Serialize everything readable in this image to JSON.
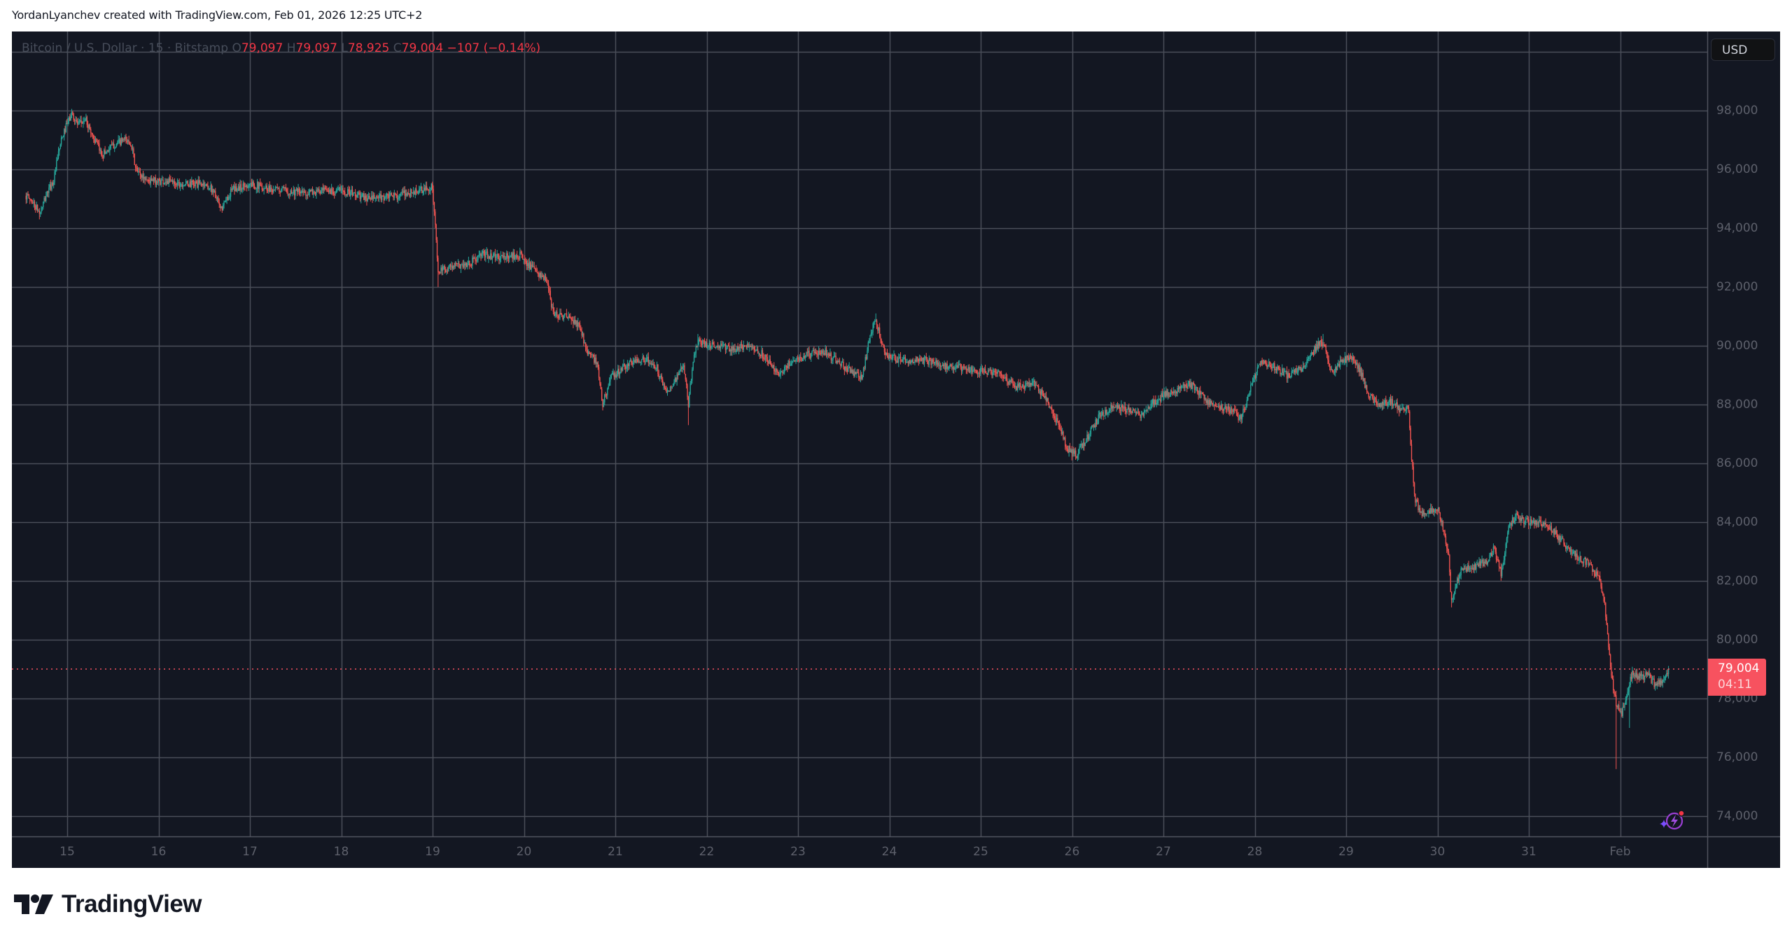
{
  "header": {
    "attribution": "YordanLyanchev created with TradingView.com, Feb 01, 2026 12:25 UTC+2"
  },
  "legend": {
    "symbol": "Bitcoin / U.S. Dollar · 15 · Bitstamp",
    "open_label": "O",
    "open": "79,097",
    "high_label": "H",
    "high": "79,097",
    "low_label": "L",
    "low": "78,925",
    "close_label": "C",
    "close": "79,004",
    "change": "−107 (−0.14%)"
  },
  "price_axis": {
    "currency_button": "USD",
    "ticks": [
      "98,000",
      "96,000",
      "94,000",
      "92,000",
      "90,000",
      "88,000",
      "86,000",
      "84,000",
      "82,000",
      "80,000",
      "78,000",
      "76,000",
      "74,000"
    ]
  },
  "time_axis": {
    "ticks": [
      "15",
      "16",
      "17",
      "18",
      "19",
      "20",
      "21",
      "22",
      "23",
      "24",
      "25",
      "26",
      "27",
      "28",
      "29",
      "30",
      "31",
      "Feb"
    ]
  },
  "last_price": {
    "value": "79,004",
    "countdown": "04:11"
  },
  "icons": {
    "assistant": "sparkle-lightning-icon"
  },
  "footer": {
    "brand": "TradingView"
  },
  "colors": {
    "background": "#131722",
    "grid": "#4a4e58",
    "up": "#26a69a",
    "down": "#ef5350",
    "last_price_line": "#f7525f",
    "axis_text": "#5d606b"
  },
  "chart_data": {
    "type": "candlestick",
    "title": "Bitcoin / U.S. Dollar · 15 · Bitstamp",
    "interval": "15 minutes",
    "xlabel": "",
    "ylabel": "USD",
    "x_ticks": [
      "15",
      "16",
      "17",
      "18",
      "19",
      "20",
      "21",
      "22",
      "23",
      "24",
      "25",
      "26",
      "27",
      "28",
      "29",
      "30",
      "31",
      "Feb"
    ],
    "y_ticks": [
      98000,
      96000,
      94000,
      92000,
      90000,
      88000,
      86000,
      84000,
      82000,
      80000,
      78000,
      76000,
      74000
    ],
    "ylim": [
      73400,
      100000
    ],
    "grid": true,
    "last": {
      "open": 79097,
      "high": 79097,
      "low": 78925,
      "close": 79004,
      "change": -107,
      "change_pct": -0.14
    },
    "path_note": "approximate close-price path; x = day of Jan 2026 (32 = Feb 1)",
    "path": [
      [
        14.55,
        95100
      ],
      [
        14.62,
        94900
      ],
      [
        14.7,
        94500
      ],
      [
        14.78,
        95200
      ],
      [
        14.85,
        95600
      ],
      [
        14.92,
        96800
      ],
      [
        14.98,
        97400
      ],
      [
        15.05,
        97900
      ],
      [
        15.12,
        97500
      ],
      [
        15.2,
        97700
      ],
      [
        15.3,
        97000
      ],
      [
        15.38,
        96500
      ],
      [
        15.5,
        96800
      ],
      [
        15.62,
        97000
      ],
      [
        15.7,
        96900
      ],
      [
        15.75,
        96000
      ],
      [
        15.8,
        95800
      ],
      [
        15.9,
        95600
      ],
      [
        16.05,
        95600
      ],
      [
        16.3,
        95500
      ],
      [
        16.5,
        95500
      ],
      [
        16.6,
        95300
      ],
      [
        16.68,
        94600
      ],
      [
        16.8,
        95300
      ],
      [
        17.0,
        95500
      ],
      [
        17.3,
        95300
      ],
      [
        17.6,
        95200
      ],
      [
        18.0,
        95300
      ],
      [
        18.3,
        95000
      ],
      [
        18.6,
        95100
      ],
      [
        18.9,
        95300
      ],
      [
        19.0,
        95400
      ],
      [
        19.03,
        94000
      ],
      [
        19.06,
        92500
      ],
      [
        19.2,
        92700
      ],
      [
        19.4,
        92800
      ],
      [
        19.55,
        93100
      ],
      [
        19.75,
        93000
      ],
      [
        19.95,
        93100
      ],
      [
        20.1,
        92600
      ],
      [
        20.25,
        92200
      ],
      [
        20.32,
        91100
      ],
      [
        20.45,
        91000
      ],
      [
        20.6,
        90700
      ],
      [
        20.7,
        89800
      ],
      [
        20.8,
        89400
      ],
      [
        20.86,
        88000
      ],
      [
        20.95,
        88900
      ],
      [
        21.1,
        89300
      ],
      [
        21.3,
        89600
      ],
      [
        21.45,
        89300
      ],
      [
        21.55,
        88400
      ],
      [
        21.65,
        88800
      ],
      [
        21.75,
        89300
      ],
      [
        21.8,
        88000
      ],
      [
        21.85,
        89500
      ],
      [
        21.9,
        90100
      ],
      [
        22.1,
        90000
      ],
      [
        22.3,
        89900
      ],
      [
        22.5,
        90000
      ],
      [
        22.65,
        89600
      ],
      [
        22.8,
        89000
      ],
      [
        22.9,
        89400
      ],
      [
        23.1,
        89700
      ],
      [
        23.3,
        89800
      ],
      [
        23.5,
        89300
      ],
      [
        23.7,
        88900
      ],
      [
        23.8,
        90500
      ],
      [
        23.85,
        90900
      ],
      [
        23.95,
        89700
      ],
      [
        24.1,
        89500
      ],
      [
        24.4,
        89500
      ],
      [
        24.6,
        89300
      ],
      [
        24.9,
        89200
      ],
      [
        25.2,
        89000
      ],
      [
        25.4,
        88600
      ],
      [
        25.6,
        88700
      ],
      [
        25.75,
        88000
      ],
      [
        25.85,
        87300
      ],
      [
        25.95,
        86500
      ],
      [
        26.05,
        86300
      ],
      [
        26.15,
        86800
      ],
      [
        26.3,
        87600
      ],
      [
        26.45,
        88000
      ],
      [
        26.6,
        87800
      ],
      [
        26.75,
        87600
      ],
      [
        26.85,
        88000
      ],
      [
        27.0,
        88300
      ],
      [
        27.15,
        88500
      ],
      [
        27.3,
        88700
      ],
      [
        27.45,
        88200
      ],
      [
        27.6,
        87900
      ],
      [
        27.75,
        87800
      ],
      [
        27.85,
        87500
      ],
      [
        27.95,
        88500
      ],
      [
        28.05,
        89400
      ],
      [
        28.2,
        89300
      ],
      [
        28.35,
        89000
      ],
      [
        28.5,
        89200
      ],
      [
        28.6,
        89600
      ],
      [
        28.7,
        90100
      ],
      [
        28.78,
        89900
      ],
      [
        28.85,
        89000
      ],
      [
        28.95,
        89500
      ],
      [
        29.05,
        89600
      ],
      [
        29.15,
        89200
      ],
      [
        29.25,
        88300
      ],
      [
        29.35,
        88000
      ],
      [
        29.5,
        88100
      ],
      [
        29.6,
        87800
      ],
      [
        29.68,
        87900
      ],
      [
        29.72,
        86000
      ],
      [
        29.76,
        84700
      ],
      [
        29.82,
        84300
      ],
      [
        29.9,
        84300
      ],
      [
        30.0,
        84500
      ],
      [
        30.06,
        83800
      ],
      [
        30.12,
        83000
      ],
      [
        30.15,
        81400
      ],
      [
        30.25,
        82300
      ],
      [
        30.4,
        82500
      ],
      [
        30.55,
        82700
      ],
      [
        30.62,
        83100
      ],
      [
        30.7,
        82200
      ],
      [
        30.78,
        83800
      ],
      [
        30.85,
        84200
      ],
      [
        31.0,
        84000
      ],
      [
        31.2,
        83900
      ],
      [
        31.35,
        83400
      ],
      [
        31.5,
        82900
      ],
      [
        31.65,
        82600
      ],
      [
        31.78,
        82000
      ],
      [
        31.83,
        81200
      ],
      [
        31.88,
        79500
      ],
      [
        31.92,
        78500
      ],
      [
        31.96,
        77800
      ],
      [
        32.02,
        77500
      ],
      [
        32.08,
        78300
      ],
      [
        32.14,
        78900
      ],
      [
        32.2,
        78700
      ],
      [
        32.3,
        78800
      ],
      [
        32.4,
        78400
      ],
      [
        32.47,
        78700
      ],
      [
        32.53,
        79004
      ]
    ],
    "notable_wicks": [
      {
        "x": 14.7,
        "low": 94300
      },
      {
        "x": 15.05,
        "high": 98000
      },
      {
        "x": 19.06,
        "low": 92000
      },
      {
        "x": 20.86,
        "low": 87800
      },
      {
        "x": 21.8,
        "low": 87300
      },
      {
        "x": 21.9,
        "high": 90400
      },
      {
        "x": 23.85,
        "high": 91100
      },
      {
        "x": 26.0,
        "low": 86100
      },
      {
        "x": 28.75,
        "high": 90400
      },
      {
        "x": 30.15,
        "low": 81100
      },
      {
        "x": 31.96,
        "low": 75600
      },
      {
        "x": 32.1,
        "low": 77000
      }
    ]
  }
}
